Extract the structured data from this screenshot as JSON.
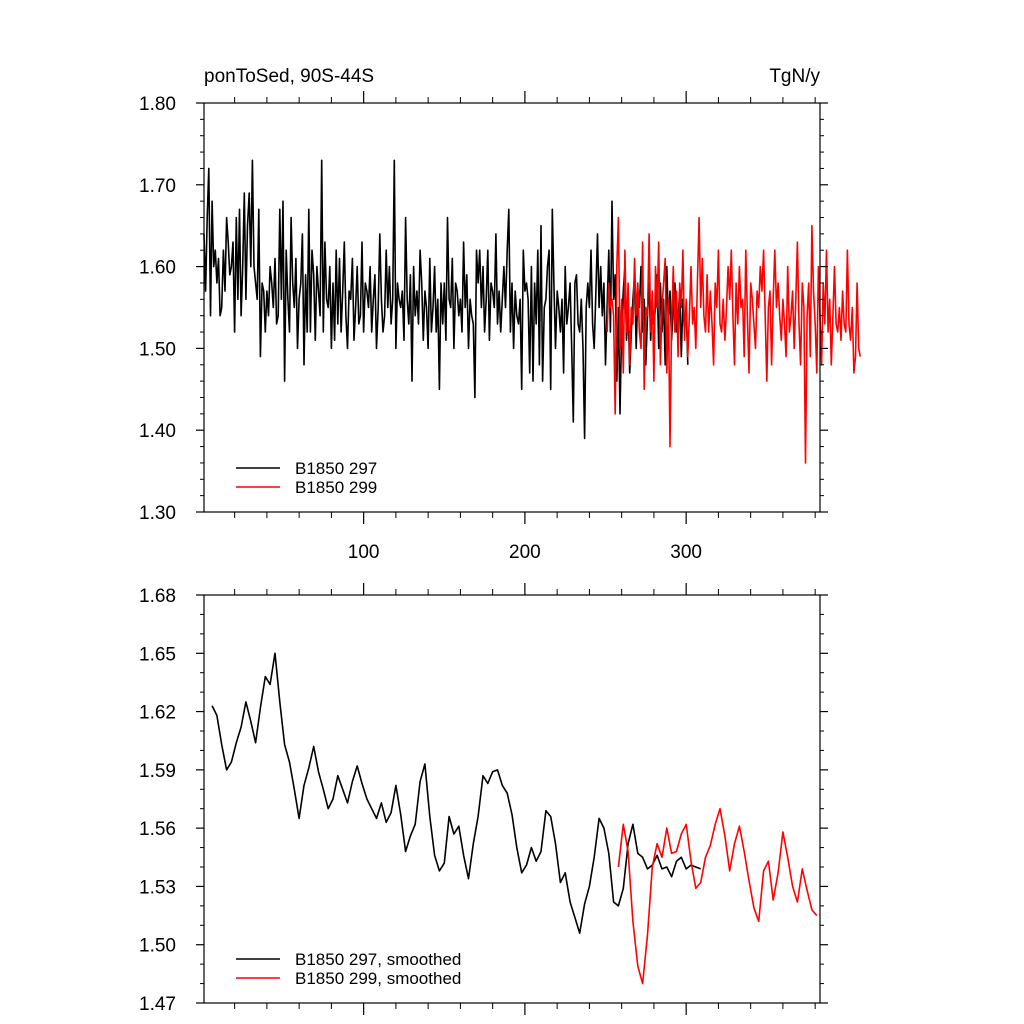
{
  "figure": {
    "title_left": "ponToSed, 90S-44S",
    "title_right": "TgN/y"
  },
  "chart_data": [
    {
      "type": "line",
      "panel": "raw",
      "xlim": [
        1,
        383
      ],
      "ylim": [
        1.3,
        1.8
      ],
      "yticks": [
        1.3,
        1.4,
        1.5,
        1.6,
        1.7,
        1.8
      ],
      "ytick_labels": [
        "1.30",
        "1.40",
        "1.50",
        "1.60",
        "1.70",
        "1.80"
      ],
      "xticks": [
        100,
        200,
        300
      ],
      "xtick_labels": [
        "100",
        "200",
        "300"
      ],
      "legend_position": "bottom-left",
      "series": [
        {
          "name": "B1850 297",
          "color": "#000000",
          "x_start": 1,
          "values": [
            1.64,
            1.57,
            1.66,
            1.72,
            1.54,
            1.68,
            1.6,
            1.62,
            1.58,
            1.61,
            1.54,
            1.55,
            1.62,
            1.57,
            1.66,
            1.63,
            1.59,
            1.6,
            1.63,
            1.52,
            1.66,
            1.56,
            1.67,
            1.54,
            1.6,
            1.69,
            1.56,
            1.65,
            1.69,
            1.6,
            1.73,
            1.6,
            1.58,
            1.56,
            1.67,
            1.49,
            1.58,
            1.57,
            1.52,
            1.57,
            1.54,
            1.6,
            1.58,
            1.55,
            1.61,
            1.53,
            1.54,
            1.67,
            1.56,
            1.68,
            1.46,
            1.62,
            1.56,
            1.52,
            1.66,
            1.58,
            1.55,
            1.61,
            1.5,
            1.56,
            1.58,
            1.64,
            1.48,
            1.59,
            1.52,
            1.67,
            1.52,
            1.62,
            1.59,
            1.51,
            1.6,
            1.57,
            1.54,
            1.73,
            1.52,
            1.63,
            1.56,
            1.55,
            1.6,
            1.5,
            1.58,
            1.51,
            1.62,
            1.53,
            1.61,
            1.52,
            1.57,
            1.63,
            1.54,
            1.5,
            1.57,
            1.56,
            1.61,
            1.51,
            1.55,
            1.6,
            1.53,
            1.54,
            1.63,
            1.52,
            1.58,
            1.57,
            1.55,
            1.6,
            1.52,
            1.56,
            1.59,
            1.5,
            1.55,
            1.64,
            1.56,
            1.52,
            1.54,
            1.62,
            1.55,
            1.6,
            1.53,
            1.56,
            1.73,
            1.5,
            1.58,
            1.56,
            1.55,
            1.57,
            1.51,
            1.66,
            1.56,
            1.53,
            1.59,
            1.46,
            1.6,
            1.54,
            1.57,
            1.53,
            1.62,
            1.58,
            1.51,
            1.57,
            1.55,
            1.5,
            1.61,
            1.52,
            1.55,
            1.6,
            1.52,
            1.56,
            1.45,
            1.58,
            1.53,
            1.58,
            1.51,
            1.66,
            1.56,
            1.55,
            1.61,
            1.5,
            1.58,
            1.57,
            1.54,
            1.56,
            1.52,
            1.63,
            1.55,
            1.59,
            1.5,
            1.56,
            1.54,
            1.53,
            1.44,
            1.62,
            1.58,
            1.62,
            1.55,
            1.6,
            1.52,
            1.56,
            1.62,
            1.51,
            1.58,
            1.57,
            1.55,
            1.64,
            1.53,
            1.57,
            1.52,
            1.56,
            1.6,
            1.55,
            1.62,
            1.67,
            1.52,
            1.58,
            1.5,
            1.57,
            1.54,
            1.53,
            1.56,
            1.45,
            1.62,
            1.57,
            1.58,
            1.56,
            1.47,
            1.6,
            1.46,
            1.58,
            1.53,
            1.62,
            1.48,
            1.65,
            1.46,
            1.55,
            1.56,
            1.6,
            1.62,
            1.45,
            1.67,
            1.58,
            1.5,
            1.57,
            1.55,
            1.52,
            1.56,
            1.47,
            1.6,
            1.53,
            1.55,
            1.58,
            1.5,
            1.41,
            1.58,
            1.59,
            1.53,
            1.52,
            1.56,
            1.5,
            1.39,
            1.55,
            1.58,
            1.55,
            1.62,
            1.53,
            1.5,
            1.57,
            1.64,
            1.55,
            1.6,
            1.54,
            1.58,
            1.48,
            1.55,
            1.62,
            1.52,
            1.68,
            1.56,
            1.59,
            1.46,
            1.55,
            1.42,
            1.53,
            1.57,
            1.6,
            1.51,
            1.55,
            1.47,
            1.52,
            1.56,
            1.59,
            1.5,
            1.57,
            1.55,
            1.6,
            1.52,
            1.56,
            1.48,
            1.54,
            1.58,
            1.51,
            1.56,
            1.53,
            1.55,
            1.59,
            1.5,
            1.58,
            1.52,
            1.56,
            1.48,
            1.6,
            1.53,
            1.57,
            1.51,
            1.55,
            1.58,
            1.52,
            1.54,
            1.57,
            1.49,
            1.56,
            1.52,
            1.55,
            1.48
          ]
        },
        {
          "name": "B1850 299",
          "color": "#ff0000",
          "x_start": 251,
          "values": [
            1.52,
            1.58,
            1.55,
            1.56,
            1.54,
            1.42,
            1.6,
            1.66,
            1.5,
            1.56,
            1.47,
            1.62,
            1.52,
            1.58,
            1.48,
            1.55,
            1.53,
            1.61,
            1.54,
            1.58,
            1.52,
            1.5,
            1.63,
            1.45,
            1.55,
            1.54,
            1.64,
            1.52,
            1.57,
            1.46,
            1.6,
            1.55,
            1.63,
            1.48,
            1.55,
            1.58,
            1.61,
            1.47,
            1.56,
            1.38,
            1.53,
            1.6,
            1.52,
            1.57,
            1.49,
            1.58,
            1.55,
            1.62,
            1.51,
            1.56,
            1.49,
            1.54,
            1.6,
            1.53,
            1.55,
            1.5,
            1.58,
            1.66,
            1.55,
            1.61,
            1.54,
            1.52,
            1.59,
            1.52,
            1.57,
            1.53,
            1.48,
            1.58,
            1.55,
            1.62,
            1.53,
            1.52,
            1.56,
            1.51,
            1.55,
            1.6,
            1.56,
            1.62,
            1.54,
            1.48,
            1.58,
            1.53,
            1.6,
            1.55,
            1.56,
            1.49,
            1.62,
            1.54,
            1.47,
            1.58,
            1.56,
            1.53,
            1.5,
            1.57,
            1.55,
            1.6,
            1.57,
            1.62,
            1.54,
            1.46,
            1.55,
            1.57,
            1.48,
            1.56,
            1.62,
            1.55,
            1.58,
            1.54,
            1.51,
            1.56,
            1.53,
            1.49,
            1.6,
            1.52,
            1.54,
            1.57,
            1.5,
            1.56,
            1.63,
            1.53,
            1.48,
            1.58,
            1.55,
            1.36,
            1.54,
            1.58,
            1.49,
            1.65,
            1.57,
            1.53,
            1.47,
            1.6,
            1.54,
            1.48,
            1.58,
            1.53,
            1.62,
            1.52,
            1.56,
            1.48,
            1.54,
            1.6,
            1.53,
            1.52,
            1.55,
            1.51,
            1.57,
            1.53,
            1.52,
            1.62,
            1.53,
            1.51,
            1.55,
            1.47,
            1.49,
            1.58,
            1.5,
            1.49
          ]
        }
      ]
    },
    {
      "type": "line",
      "panel": "smoothed",
      "xlim": [
        1,
        383
      ],
      "ylim": [
        1.47,
        1.68
      ],
      "yticks": [
        1.47,
        1.5,
        1.53,
        1.56,
        1.59,
        1.62,
        1.65,
        1.68
      ],
      "ytick_labels": [
        "1.47",
        "1.50",
        "1.53",
        "1.56",
        "1.59",
        "1.62",
        "1.65",
        "1.68"
      ],
      "xticks": [
        100,
        200,
        300
      ],
      "legend_position": "bottom-left",
      "series": [
        {
          "name": "B1850 297, smoothed",
          "color": "#000000",
          "x": [
            6,
            9,
            12,
            15,
            18,
            21,
            24,
            27,
            30,
            33,
            36,
            39,
            42,
            45,
            48,
            51,
            54,
            57,
            60,
            63,
            66,
            69,
            72,
            75,
            78,
            81,
            84,
            87,
            90,
            93,
            96,
            99,
            102,
            105,
            108,
            111,
            114,
            117,
            120,
            123,
            126,
            129,
            132,
            135,
            138,
            141,
            144,
            147,
            150,
            153,
            156,
            159,
            162,
            165,
            168,
            171,
            174,
            177,
            180,
            183,
            186,
            189,
            192,
            195,
            198,
            201,
            204,
            207,
            210,
            213,
            216,
            219,
            222,
            225,
            228,
            231,
            234,
            237,
            240,
            243,
            246,
            249,
            252,
            255,
            258,
            261,
            264,
            267,
            270,
            273,
            276,
            279,
            282,
            285,
            288,
            291,
            294,
            297,
            300,
            303,
            306,
            309
          ],
          "values": [
            1.623,
            1.618,
            1.603,
            1.59,
            1.594,
            1.604,
            1.612,
            1.625,
            1.615,
            1.604,
            1.622,
            1.638,
            1.634,
            1.65,
            1.625,
            1.603,
            1.594,
            1.58,
            1.565,
            1.582,
            1.591,
            1.602,
            1.589,
            1.58,
            1.57,
            1.575,
            1.587,
            1.58,
            1.573,
            1.584,
            1.592,
            1.583,
            1.575,
            1.57,
            1.565,
            1.573,
            1.563,
            1.568,
            1.582,
            1.567,
            1.548,
            1.556,
            1.562,
            1.584,
            1.593,
            1.566,
            1.546,
            1.538,
            1.542,
            1.566,
            1.557,
            1.561,
            1.546,
            1.534,
            1.552,
            1.566,
            1.587,
            1.583,
            1.589,
            1.59,
            1.582,
            1.578,
            1.567,
            1.55,
            1.537,
            1.541,
            1.55,
            1.543,
            1.548,
            1.569,
            1.566,
            1.552,
            1.532,
            1.537,
            1.522,
            1.514,
            1.506,
            1.521,
            1.53,
            1.545,
            1.565,
            1.56,
            1.547,
            1.522,
            1.52,
            1.529,
            1.552,
            1.562,
            1.547,
            1.545,
            1.539,
            1.541,
            1.546,
            1.539,
            1.54,
            1.535,
            1.543,
            1.545,
            1.539,
            1.541,
            1.54,
            1.539
          ]
        },
        {
          "name": "B1850 299, smoothed",
          "color": "#ff0000",
          "x": [
            258,
            261,
            264,
            267,
            270,
            273,
            276,
            279,
            282,
            285,
            288,
            291,
            294,
            297,
            300,
            303,
            306,
            309,
            312,
            315,
            318,
            321,
            324,
            327,
            330,
            333,
            336,
            339,
            342,
            345,
            348,
            351,
            354,
            357,
            360,
            363,
            366,
            369,
            372,
            375,
            378,
            381
          ],
          "values": [
            1.54,
            1.562,
            1.548,
            1.512,
            1.489,
            1.48,
            1.505,
            1.54,
            1.552,
            1.545,
            1.56,
            1.547,
            1.548,
            1.557,
            1.562,
            1.543,
            1.529,
            1.532,
            1.545,
            1.551,
            1.562,
            1.57,
            1.556,
            1.538,
            1.552,
            1.561,
            1.548,
            1.533,
            1.519,
            1.512,
            1.538,
            1.543,
            1.523,
            1.537,
            1.558,
            1.545,
            1.53,
            1.522,
            1.539,
            1.528,
            1.518,
            1.515
          ]
        }
      ]
    }
  ]
}
